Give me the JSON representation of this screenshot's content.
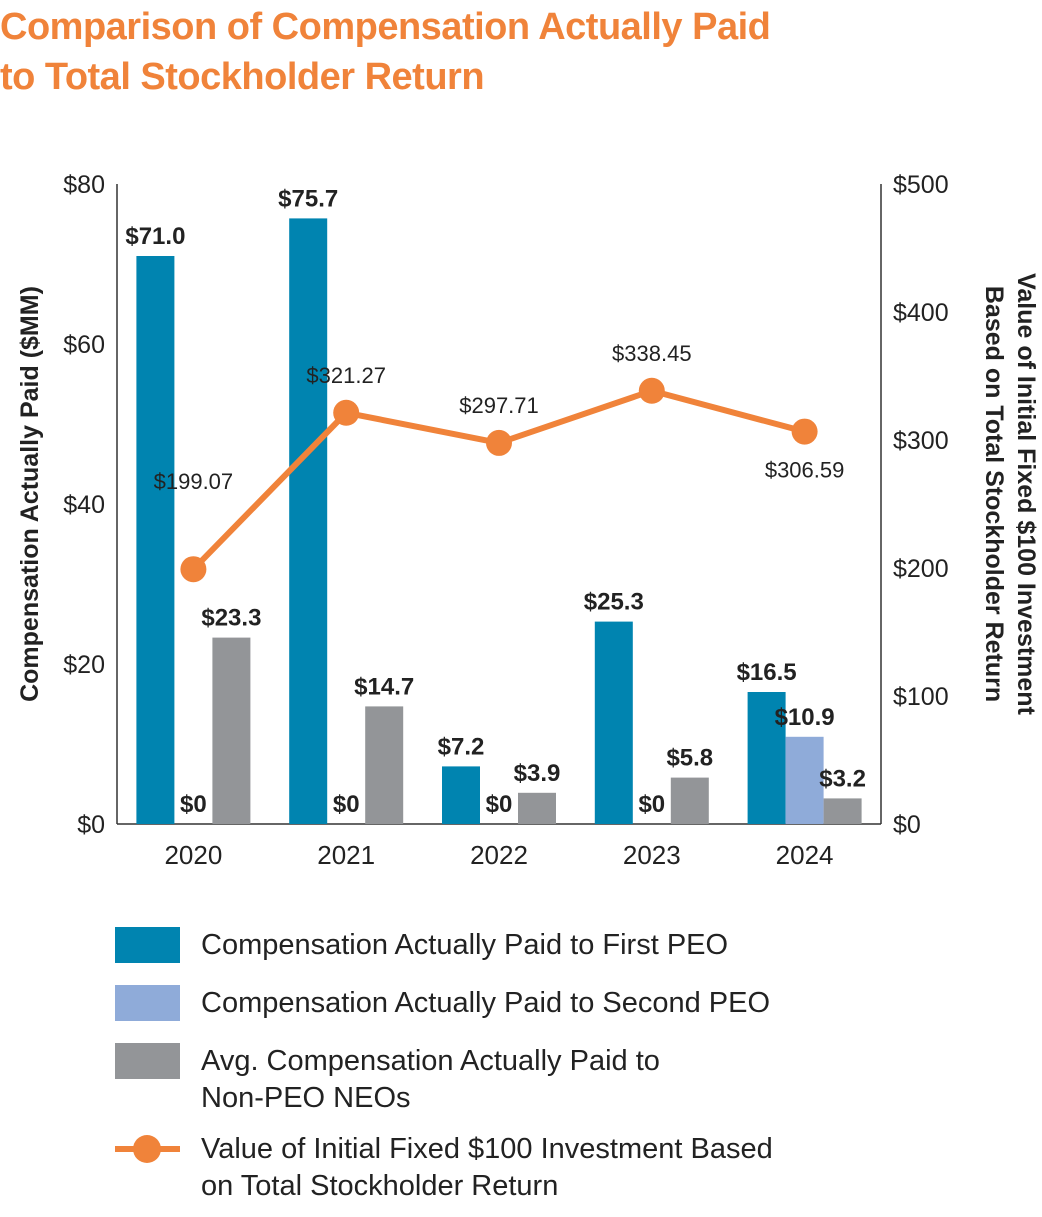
{
  "title": {
    "line1": "Comparison of Compensation Actually Paid",
    "line2": "to Total Stockholder Return"
  },
  "chart_data": {
    "type": "bar",
    "categories": [
      "2020",
      "2021",
      "2022",
      "2023",
      "2024"
    ],
    "ylabel": "Compensation Actually Paid ($MM)",
    "ylabel_right": [
      "Value of Initial Fixed $100 Investment",
      "Based on Total Stockholder Return"
    ],
    "ylim": [
      0,
      80
    ],
    "yticks": [
      "$0",
      "$20",
      "$40",
      "$60",
      "$80"
    ],
    "ylim_right": [
      0,
      500
    ],
    "yticks_right": [
      "$0",
      "$100",
      "$200",
      "$300",
      "$400",
      "$500"
    ],
    "series": [
      {
        "name": "Compensation Actually Paid to First PEO",
        "color": "#0084B0",
        "values": [
          71.0,
          75.7,
          7.2,
          25.3,
          16.5
        ],
        "labels": [
          "$71.0",
          "$75.7",
          "$7.2",
          "$25.3",
          "$16.5"
        ]
      },
      {
        "name": "Compensation Actually Paid to Second PEO",
        "color": "#8FABD9",
        "values": [
          0,
          0,
          0,
          0,
          10.9
        ],
        "labels": [
          "$0",
          "$0",
          "$0",
          "$0",
          "$10.9"
        ]
      },
      {
        "name": "Avg. Compensation Actually Paid to Non-PEO NEOs",
        "color": "#939598",
        "values": [
          23.3,
          14.7,
          3.9,
          5.8,
          3.2
        ],
        "labels": [
          "$23.3",
          "$14.7",
          "$3.9",
          "$5.8",
          "$3.2"
        ]
      }
    ],
    "line_series": {
      "name": "Value of Initial Fixed $100 Investment Based on Total Stockholder Return",
      "color": "#F0833A",
      "axis": "right",
      "values": [
        199.07,
        321.27,
        297.71,
        338.45,
        306.59
      ],
      "labels": [
        "$199.07",
        "$321.27",
        "$297.71",
        "$338.45",
        "$306.59"
      ]
    }
  },
  "legend": {
    "items": [
      {
        "label": "Compensation Actually Paid to First PEO",
        "color": "#0084B0"
      },
      {
        "label": "Compensation Actually Paid to Second PEO",
        "color": "#8FABD9"
      },
      {
        "label_line1": "Avg. Compensation Actually Paid to",
        "label_line2": "Non-PEO NEOs",
        "color": "#939598"
      },
      {
        "label_line1": "Value of Initial Fixed $100 Investment Based",
        "label_line2": "on Total Stockholder Return",
        "color": "#F0833A"
      }
    ]
  }
}
